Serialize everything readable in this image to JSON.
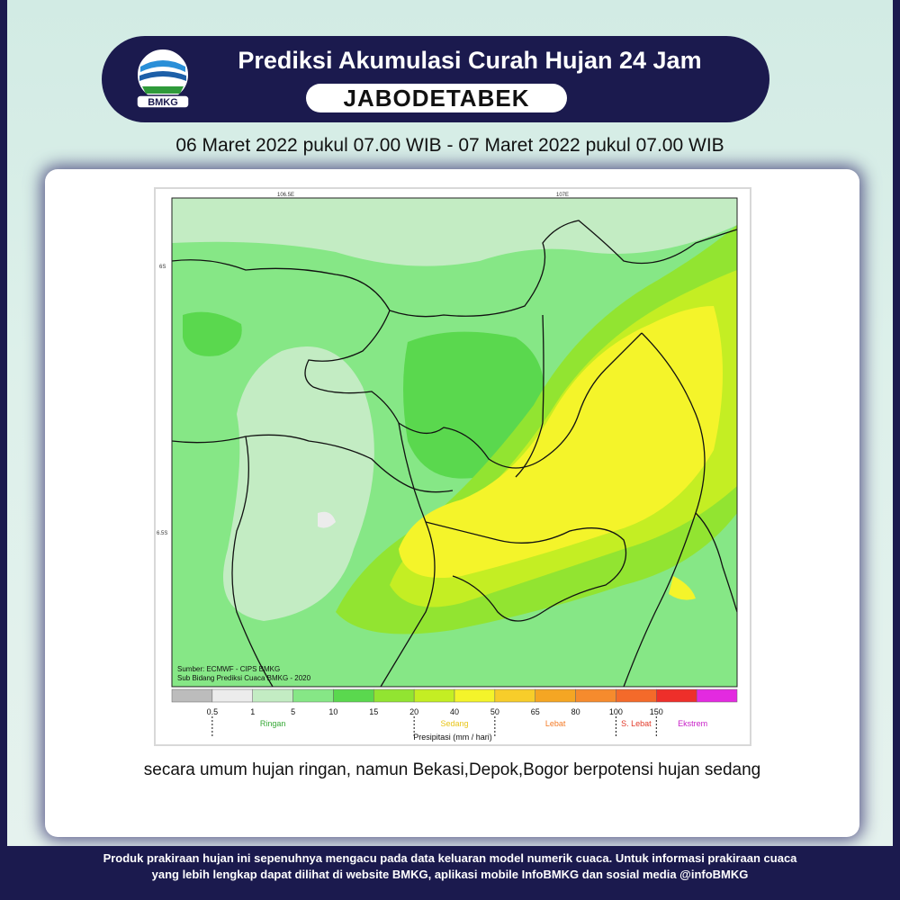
{
  "header": {
    "logo_text": "BMKG",
    "title": "Prediksi Akumulasi Curah Hujan 24 Jam",
    "region": "JABODETABEK",
    "period": "06 Maret 2022 pukul 07.00 WIB - 07 Maret 2022 pukul 07.00 WIB"
  },
  "map": {
    "lon_labels": [
      "106.5E",
      "107E"
    ],
    "lat_labels": [
      "6S",
      "6.5S"
    ],
    "source_line1": "Sumber: ECMWF - CIPS BMKG",
    "source_line2": "Sub Bidang Prediksi Cuaca BMKG - 2020"
  },
  "legend": {
    "colors": [
      "#bcbcbc",
      "#ececec",
      "#c3ecc3",
      "#86e786",
      "#5ad84e",
      "#92e431",
      "#c4ee23",
      "#f4f42a",
      "#f7cd2a",
      "#f5a623",
      "#f68b2d",
      "#f46a2a",
      "#ee2f2a",
      "#e32ae0"
    ],
    "ticks": [
      "0.5",
      "1",
      "5",
      "10",
      "15",
      "20",
      "40",
      "50",
      "65",
      "80",
      "100",
      "150"
    ],
    "category_labels": [
      "Ringan",
      "Sedang",
      "Lebat",
      "S. Lebat",
      "Ekstrem"
    ],
    "category_colors": [
      "#35a835",
      "#e8c51a",
      "#f47a25",
      "#e23a2a",
      "#c71fc7"
    ],
    "axis_title": "Presipitasi (mm / hari)"
  },
  "caption": "secara umum hujan ringan, namun Bekasi,Depok,Bogor berpotensi hujan sedang",
  "footer": {
    "line1": "Produk prakiraan hujan ini sepenuhnya mengacu pada data keluaran model numerik cuaca. Untuk informasi prakiraan cuaca",
    "line2": "yang lebih lengkap dapat dilihat di website BMKG, aplikasi mobile InfoBMKG dan sosial media @infoBMKG"
  },
  "palette": {
    "navy": "#1b1a4e",
    "light_green": "#c3ecc3",
    "green": "#86e786",
    "bright_green": "#5ad84e",
    "yellow": "#f4f42a"
  }
}
